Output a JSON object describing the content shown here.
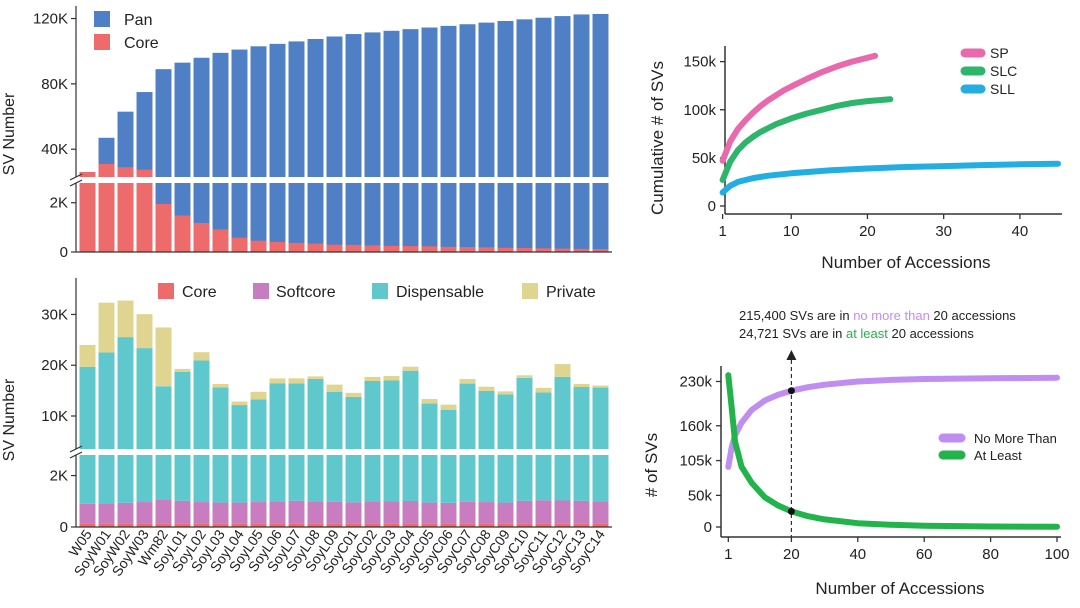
{
  "accessions": [
    "W05",
    "SoyW01",
    "SoyW02",
    "SoyW03",
    "Wm82",
    "SoyL01",
    "SoyL02",
    "SoyL03",
    "SoyL04",
    "SoyL05",
    "SoyL06",
    "SoyL07",
    "SoyL08",
    "SoyL09",
    "SoyC01",
    "SoyC02",
    "SoyC03",
    "SoyC04",
    "SoyC05",
    "SoyC06",
    "SoyC07",
    "SoyC08",
    "SoyC09",
    "SoyC10",
    "SoyC11",
    "SoyC12",
    "SoyC13",
    "SoyC14"
  ],
  "chart_data": [
    {
      "id": "pan-core",
      "type": "bar",
      "ylabel": "SV Number",
      "axis_break": true,
      "lower_ylim": [
        0,
        2800
      ],
      "upper_ylim": [
        23000,
        124000
      ],
      "lower_ticks": [
        {
          "v": 0,
          "label": "0"
        },
        {
          "v": 2000,
          "label": "2K"
        }
      ],
      "upper_ticks": [
        {
          "v": 40000,
          "label": "40K"
        },
        {
          "v": 80000,
          "label": "80K"
        },
        {
          "v": 120000,
          "label": "120K"
        }
      ],
      "legend": [
        "Pan",
        "Core"
      ],
      "series": [
        {
          "name": "Pan",
          "color": "#4f7fc4",
          "values": [
            26000,
            47000,
            63000,
            75000,
            89000,
            93000,
            96000,
            99000,
            101000,
            103000,
            104500,
            106000,
            107500,
            109000,
            110500,
            111500,
            112500,
            113500,
            114500,
            115500,
            116500,
            117500,
            118500,
            119500,
            120500,
            121500,
            122500,
            122800
          ]
        },
        {
          "name": "Core",
          "color": "#ee6b6b",
          "values": [
            26000,
            31000,
            29000,
            27500,
            1950,
            1480,
            1180,
            920,
            580,
            460,
            410,
            370,
            340,
            300,
            290,
            270,
            250,
            240,
            230,
            210,
            200,
            190,
            170,
            160,
            150,
            140,
            130,
            120
          ]
        }
      ]
    },
    {
      "id": "composition",
      "type": "stacked-bar",
      "ylabel": "SV Number",
      "axis_break": true,
      "lower_ylim": [
        0,
        2800
      ],
      "upper_ylim": [
        3500,
        36000
      ],
      "lower_ticks": [
        {
          "v": 0,
          "label": "0"
        },
        {
          "v": 2000,
          "label": "2K"
        }
      ],
      "upper_ticks": [
        {
          "v": 10000,
          "label": "10K"
        },
        {
          "v": 20000,
          "label": "20K"
        },
        {
          "v": 30000,
          "label": "30K"
        }
      ],
      "legend": [
        "Core",
        "Softcore",
        "Dispensable",
        "Private"
      ],
      "series": [
        {
          "name": "Core",
          "color": "#ee6b6b",
          "values": [
            120,
            120,
            120,
            120,
            120,
            120,
            120,
            120,
            120,
            120,
            120,
            120,
            120,
            120,
            120,
            120,
            120,
            120,
            120,
            120,
            120,
            120,
            120,
            120,
            120,
            120,
            120,
            120
          ]
        },
        {
          "name": "Softcore",
          "color": "#c77dbf",
          "values": [
            780,
            800,
            820,
            850,
            930,
            900,
            850,
            830,
            830,
            850,
            880,
            900,
            880,
            860,
            840,
            880,
            870,
            890,
            830,
            820,
            860,
            850,
            830,
            900,
            920,
            910,
            900,
            880
          ]
        },
        {
          "name": "Dispensable",
          "color": "#5ec8cc",
          "values": [
            18800,
            21600,
            24600,
            22400,
            14800,
            17700,
            20000,
            14700,
            11200,
            12300,
            15400,
            15400,
            16300,
            13800,
            12800,
            15900,
            16000,
            17900,
            11500,
            10300,
            15400,
            14000,
            13300,
            16500,
            13600,
            16700,
            14700,
            14600
          ]
        },
        {
          "name": "Private",
          "color": "#e0d590",
          "values": [
            4300,
            9800,
            7200,
            6700,
            11600,
            550,
            1600,
            650,
            700,
            1500,
            1000,
            1000,
            500,
            1400,
            800,
            800,
            900,
            800,
            900,
            1000,
            900,
            800,
            600,
            500,
            900,
            2500,
            600,
            400
          ]
        }
      ]
    },
    {
      "id": "cumulative",
      "type": "line",
      "xlabel": "Number of Accessions",
      "ylabel": "Cumulative # of SVs",
      "xlim": [
        0,
        45
      ],
      "ylim": [
        0,
        160000
      ],
      "xticks": [
        1,
        10,
        20,
        30,
        40
      ],
      "yticks": [
        {
          "v": 0,
          "label": "0"
        },
        {
          "v": 50000,
          "label": "50k"
        },
        {
          "v": 100000,
          "label": "100k"
        },
        {
          "v": 150000,
          "label": "150k"
        }
      ],
      "series": [
        {
          "name": "SP",
          "color": "#e96aac",
          "x": [
            1,
            2,
            3,
            4,
            5,
            6,
            7,
            8,
            9,
            10,
            12,
            14,
            16,
            18,
            20,
            21
          ],
          "y": [
            47000,
            67000,
            80000,
            89000,
            97000,
            104000,
            110000,
            115000,
            120000,
            124000,
            132000,
            139000,
            145000,
            150000,
            154000,
            156000
          ]
        },
        {
          "name": "SLC",
          "color": "#2cb56b",
          "x": [
            1,
            2,
            3,
            4,
            5,
            6,
            7,
            8,
            9,
            10,
            12,
            14,
            16,
            18,
            20,
            23
          ],
          "y": [
            27000,
            46000,
            58000,
            66000,
            72000,
            77000,
            81000,
            85000,
            88000,
            91000,
            96000,
            100000,
            104000,
            107000,
            109000,
            111000
          ]
        },
        {
          "name": "SLL",
          "color": "#23aee2",
          "x": [
            1,
            2,
            3,
            5,
            7,
            10,
            15,
            20,
            25,
            30,
            35,
            40,
            45
          ],
          "y": [
            14000,
            21000,
            25000,
            29000,
            31500,
            34000,
            37000,
            39000,
            40500,
            41500,
            42500,
            43300,
            44000
          ]
        }
      ]
    },
    {
      "id": "threshold",
      "type": "line",
      "xlabel": "Number of Accessions",
      "ylabel": "# of SVs",
      "xlim": [
        0,
        100
      ],
      "ylim": [
        0,
        245000
      ],
      "xticks": [
        1,
        20,
        40,
        60,
        80,
        100
      ],
      "yticks": [
        {
          "v": 0,
          "label": "0"
        },
        {
          "v": 50000,
          "label": "50k"
        },
        {
          "v": 105000,
          "label": "105k"
        },
        {
          "v": 160000,
          "label": "160k"
        },
        {
          "v": 230000,
          "label": "230k"
        }
      ],
      "series": [
        {
          "name": "No More Than",
          "color": "#c08ef0",
          "x": [
            1,
            2,
            3,
            5,
            8,
            12,
            16,
            20,
            25,
            30,
            40,
            50,
            60,
            80,
            100
          ],
          "y": [
            95000,
            125000,
            145000,
            165000,
            185000,
            200000,
            209000,
            215400,
            221000,
            225000,
            230000,
            232500,
            234000,
            235000,
            236000
          ]
        },
        {
          "name": "At Least",
          "color": "#22b34a",
          "x": [
            1,
            2,
            3,
            5,
            8,
            12,
            16,
            20,
            25,
            30,
            40,
            50,
            60,
            80,
            100
          ],
          "y": [
            240000,
            190000,
            135000,
            95000,
            70000,
            47000,
            34000,
            24721,
            17000,
            12000,
            6000,
            3500,
            2000,
            800,
            400
          ]
        }
      ],
      "marker_x": 20,
      "annotation": {
        "line1_prefix": "215,400 SVs are in ",
        "line1_highlight": "no more than",
        "line1_suffix": " 20 accessions",
        "line2_prefix": "24,721 SVs are in ",
        "line2_highlight": "at least",
        "line2_suffix": " 20 accessions"
      }
    }
  ]
}
